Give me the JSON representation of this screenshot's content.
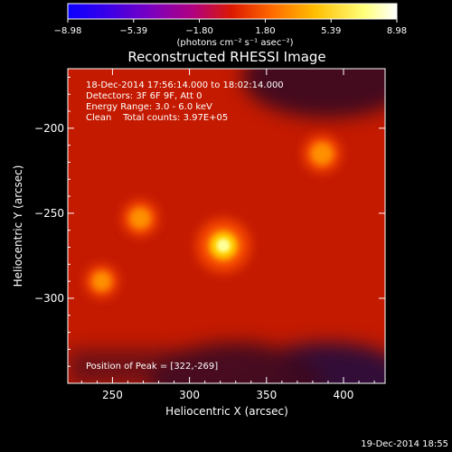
{
  "chart_data": {
    "type": "heatmap",
    "title": "Reconstructed RHESSI Image",
    "xlabel": "Heliocentric X (arcsec)",
    "ylabel": "Heliocentric Y (arcsec)",
    "xlim": [
      221,
      427
    ],
    "ylim": [
      -350,
      -165
    ],
    "x_ticks": [
      250,
      300,
      350,
      400
    ],
    "y_ticks": [
      -200,
      -250,
      -300
    ],
    "x_tick_labels": [
      "250",
      "300",
      "350",
      "400"
    ],
    "y_tick_labels": [
      "−200",
      "−250",
      "−300"
    ],
    "colorbar": {
      "min": -8.98,
      "max": 8.98,
      "tick_values": [
        -8.98,
        -5.39,
        -1.8,
        1.8,
        5.39,
        8.98
      ],
      "tick_labels": [
        "−8.98",
        "−5.39",
        "−1.80",
        "1.80",
        "5.39",
        "8.98"
      ],
      "unit_label": "(photons cm⁻² s⁻¹ asec⁻²)",
      "colors": [
        "#0a00ff",
        "#3a00e8",
        "#7a00c0",
        "#b00080",
        "#dc1a00",
        "#ff6a00",
        "#ffbd00",
        "#ffff7a",
        "#ffffff"
      ]
    },
    "annotations": {
      "time_range": "18-Dec-2014 17:56:14.000 to 18:02:14.000",
      "detectors": "Detectors: 3F 6F 9F, Att 0",
      "energy_range": "Energy Range: 3.0 - 6.0 keV",
      "clean": "Clean    Total counts: 3.97E+05",
      "peak_position": "Position of Peak = [322,-269]"
    },
    "sources": [
      {
        "x": 322,
        "y": -269,
        "intensity": 8.98
      },
      {
        "x": 386,
        "y": -215,
        "intensity": 4.5
      },
      {
        "x": 268,
        "y": -253,
        "intensity": 4.0
      },
      {
        "x": 243,
        "y": -290,
        "intensity": 3.2
      }
    ],
    "background_intensity": 2.5,
    "dim_regions": [
      {
        "x": 390,
        "y": -170,
        "intensity": -3.5
      },
      {
        "x": 390,
        "y": -350,
        "intensity": -4.5
      },
      {
        "x": 330,
        "y": -350,
        "intensity": -2.5
      }
    ]
  },
  "footer": {
    "timestamp": "19-Dec-2014 18:55"
  }
}
